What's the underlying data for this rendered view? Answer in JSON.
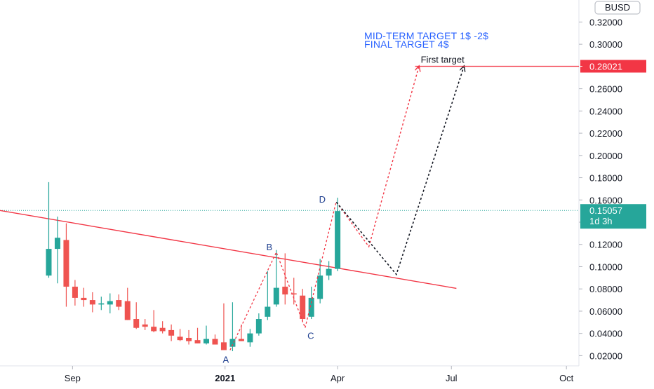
{
  "chart_data": {
    "type": "candlestick",
    "title": "",
    "price_axis": {
      "currency_badge": "BUSD",
      "ticks": [
        "0.32000",
        "0.30000",
        "0.28000",
        "0.26000",
        "0.24000",
        "0.22000",
        "0.20000",
        "0.18000",
        "0.16000",
        "0.14000",
        "0.12000",
        "0.10000",
        "0.08000",
        "0.06000",
        "0.04000",
        "0.02000"
      ],
      "ylim": [
        0.0,
        0.335
      ]
    },
    "time_axis": {
      "ticks": [
        {
          "label": "Sep",
          "date": "2020-09-01",
          "bold": false
        },
        {
          "label": "2021",
          "date": "2021-01-01",
          "bold": true
        },
        {
          "label": "Apr",
          "date": "2021-04-01",
          "bold": false
        },
        {
          "label": "Jul",
          "date": "2021-07-01",
          "bold": false
        },
        {
          "label": "Oct",
          "date": "2021-10-01",
          "bold": false
        }
      ],
      "xlim": [
        "2020-07-05",
        "2021-10-11"
      ]
    },
    "candles": [
      {
        "date": "2020-08-13",
        "o": 0.092,
        "h": 0.176,
        "l": 0.09,
        "c": 0.116
      },
      {
        "date": "2020-08-20",
        "o": 0.116,
        "h": 0.145,
        "l": 0.085,
        "c": 0.126
      },
      {
        "date": "2020-08-27",
        "o": 0.124,
        "h": 0.139,
        "l": 0.064,
        "c": 0.082
      },
      {
        "date": "2020-09-03",
        "o": 0.082,
        "h": 0.088,
        "l": 0.065,
        "c": 0.072
      },
      {
        "date": "2020-09-10",
        "o": 0.072,
        "h": 0.081,
        "l": 0.064,
        "c": 0.07
      },
      {
        "date": "2020-09-17",
        "o": 0.07,
        "h": 0.077,
        "l": 0.059,
        "c": 0.066
      },
      {
        "date": "2020-09-24",
        "o": 0.066,
        "h": 0.073,
        "l": 0.061,
        "c": 0.067
      },
      {
        "date": "2020-10-01",
        "o": 0.066,
        "h": 0.076,
        "l": 0.058,
        "c": 0.069
      },
      {
        "date": "2020-10-08",
        "o": 0.07,
        "h": 0.075,
        "l": 0.061,
        "c": 0.064
      },
      {
        "date": "2020-10-15",
        "o": 0.069,
        "h": 0.081,
        "l": 0.052,
        "c": 0.052
      },
      {
        "date": "2020-10-22",
        "o": 0.053,
        "h": 0.068,
        "l": 0.044,
        "c": 0.045
      },
      {
        "date": "2020-10-29",
        "o": 0.048,
        "h": 0.053,
        "l": 0.043,
        "c": 0.046
      },
      {
        "date": "2020-11-05",
        "o": 0.046,
        "h": 0.061,
        "l": 0.041,
        "c": 0.042
      },
      {
        "date": "2020-11-12",
        "o": 0.045,
        "h": 0.051,
        "l": 0.04,
        "c": 0.042
      },
      {
        "date": "2020-11-19",
        "o": 0.043,
        "h": 0.048,
        "l": 0.033,
        "c": 0.038
      },
      {
        "date": "2020-11-26",
        "o": 0.037,
        "h": 0.044,
        "l": 0.033,
        "c": 0.034
      },
      {
        "date": "2020-12-03",
        "o": 0.036,
        "h": 0.043,
        "l": 0.03,
        "c": 0.033
      },
      {
        "date": "2020-12-10",
        "o": 0.034,
        "h": 0.045,
        "l": 0.031,
        "c": 0.031
      },
      {
        "date": "2020-12-17",
        "o": 0.031,
        "h": 0.047,
        "l": 0.03,
        "c": 0.035
      },
      {
        "date": "2020-12-24",
        "o": 0.035,
        "h": 0.039,
        "l": 0.03,
        "c": 0.03
      },
      {
        "date": "2020-12-31",
        "o": 0.032,
        "h": 0.067,
        "l": 0.025,
        "c": 0.025
      },
      {
        "date": "2021-01-07",
        "o": 0.028,
        "h": 0.068,
        "l": 0.024,
        "c": 0.035
      },
      {
        "date": "2021-01-14",
        "o": 0.035,
        "h": 0.048,
        "l": 0.033,
        "c": 0.033
      },
      {
        "date": "2021-01-21",
        "o": 0.032,
        "h": 0.044,
        "l": 0.028,
        "c": 0.04
      },
      {
        "date": "2021-01-28",
        "o": 0.04,
        "h": 0.058,
        "l": 0.038,
        "c": 0.053
      },
      {
        "date": "2021-02-04",
        "o": 0.055,
        "h": 0.096,
        "l": 0.052,
        "c": 0.064
      },
      {
        "date": "2021-02-11",
        "o": 0.066,
        "h": 0.115,
        "l": 0.064,
        "c": 0.081
      },
      {
        "date": "2021-02-18",
        "o": 0.082,
        "h": 0.112,
        "l": 0.066,
        "c": 0.075
      },
      {
        "date": "2021-02-25",
        "o": 0.076,
        "h": 0.09,
        "l": 0.066,
        "c": 0.075
      },
      {
        "date": "2021-03-04",
        "o": 0.074,
        "h": 0.08,
        "l": 0.05,
        "c": 0.053
      },
      {
        "date": "2021-03-11",
        "o": 0.055,
        "h": 0.082,
        "l": 0.053,
        "c": 0.072
      },
      {
        "date": "2021-03-18",
        "o": 0.071,
        "h": 0.107,
        "l": 0.067,
        "c": 0.092
      },
      {
        "date": "2021-03-25",
        "o": 0.092,
        "h": 0.105,
        "l": 0.088,
        "c": 0.098
      },
      {
        "date": "2021-04-01",
        "o": 0.098,
        "h": 0.162,
        "l": 0.096,
        "c": 0.15
      }
    ],
    "trendline": {
      "start": {
        "date": "2020-07-05",
        "value": 0.1505
      },
      "end": {
        "date": "2021-07-05",
        "value": 0.0805
      }
    },
    "wave_path": [
      {
        "label": "A",
        "date": "2021-01-05",
        "value": 0.025
      },
      {
        "label": "B",
        "date": "2021-02-11",
        "value": 0.113
      },
      {
        "label": "C",
        "date": "2021-03-06",
        "value": 0.045
      },
      {
        "label": "D",
        "date": "2021-03-31",
        "value": 0.159
      }
    ],
    "projection_red": [
      {
        "date": "2021-03-31",
        "value": 0.158
      },
      {
        "date": "2021-04-26",
        "value": 0.118
      },
      {
        "date": "2021-06-05",
        "value": 0.28
      }
    ],
    "projection_black": [
      {
        "date": "2021-03-31",
        "value": 0.158
      },
      {
        "date": "2021-05-18",
        "value": 0.093
      },
      {
        "date": "2021-07-11",
        "value": 0.28
      }
    ],
    "target_line": {
      "value": 0.28021,
      "start": "2021-06-02",
      "label": "First target",
      "color": "#f23645"
    },
    "current_price": {
      "value": 0.15057,
      "countdown": "1d 3h",
      "color": "#26a69a"
    },
    "notes": [
      "MID-TERM TARGET 1$ -2$",
      "FINAL TARGET 4$"
    ],
    "colors": {
      "up": "#26a69a",
      "down": "#ef5350",
      "trend": "#f23645",
      "black_projection": "#131722",
      "note_blue": "#2962ff"
    }
  }
}
